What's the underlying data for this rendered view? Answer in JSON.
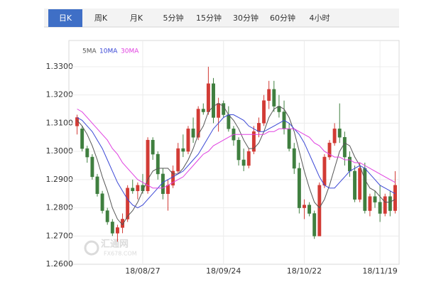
{
  "tabs": [
    "日K",
    "周K",
    "月K",
    "5分钟",
    "15分钟",
    "30分钟",
    "60分钟",
    "4小时"
  ],
  "active_tab": 0,
  "watermark": {
    "name": "汇通网",
    "site": "FX678.COM"
  },
  "chart_data": {
    "type": "candlestick",
    "up_color": "#d23b35",
    "down_color": "#3f7f3f",
    "categories": [
      null,
      null,
      null,
      null,
      null,
      null,
      null,
      null,
      null,
      null,
      null,
      null,
      null,
      "18/08/27",
      null,
      null,
      null,
      null,
      null,
      null,
      null,
      null,
      null,
      null,
      null,
      null,
      null,
      null,
      null,
      "18/09/24",
      null,
      null,
      null,
      null,
      null,
      null,
      null,
      null,
      null,
      null,
      null,
      null,
      null,
      null,
      null,
      "18/10/22",
      null,
      null,
      null,
      null,
      null,
      null,
      null,
      null,
      null,
      null,
      null,
      null,
      null,
      null,
      "18/11/19",
      null,
      null,
      null
    ],
    "ohlc": [
      [
        1.309,
        1.313,
        1.306,
        1.312
      ],
      [
        1.308,
        1.309,
        1.3,
        1.301
      ],
      [
        1.301,
        1.302,
        1.296,
        1.298
      ],
      [
        1.298,
        1.299,
        1.29,
        1.291
      ],
      [
        1.291,
        1.292,
        1.284,
        1.285
      ],
      [
        1.285,
        1.286,
        1.278,
        1.279
      ],
      [
        1.279,
        1.28,
        1.274,
        1.275
      ],
      [
        1.275,
        1.276,
        1.27,
        1.271
      ],
      [
        1.271,
        1.274,
        1.268,
        1.273
      ],
      [
        1.273,
        1.278,
        1.271,
        1.276
      ],
      [
        1.276,
        1.288,
        1.275,
        1.287
      ],
      [
        1.287,
        1.29,
        1.285,
        1.286
      ],
      [
        1.286,
        1.289,
        1.283,
        1.288
      ],
      [
        1.288,
        1.292,
        1.285,
        1.286
      ],
      [
        1.286,
        1.305,
        1.285,
        1.304
      ],
      [
        1.304,
        1.305,
        1.297,
        1.299
      ],
      [
        1.299,
        1.3,
        1.29,
        1.292
      ],
      [
        1.292,
        1.294,
        1.283,
        1.285
      ],
      [
        1.285,
        1.29,
        1.279,
        1.288
      ],
      [
        1.288,
        1.295,
        1.287,
        1.293
      ],
      [
        1.293,
        1.303,
        1.292,
        1.301
      ],
      [
        1.301,
        1.306,
        1.298,
        1.3
      ],
      [
        1.3,
        1.309,
        1.299,
        1.308
      ],
      [
        1.308,
        1.312,
        1.303,
        1.305
      ],
      [
        1.305,
        1.316,
        1.304,
        1.315
      ],
      [
        1.315,
        1.317,
        1.313,
        1.314
      ],
      [
        1.314,
        1.33,
        1.313,
        1.324
      ],
      [
        1.324,
        1.326,
        1.31,
        1.312
      ],
      [
        1.312,
        1.319,
        1.307,
        1.317
      ],
      [
        1.317,
        1.318,
        1.312,
        1.313
      ],
      [
        1.313,
        1.316,
        1.307,
        1.308
      ],
      [
        1.308,
        1.309,
        1.302,
        1.304
      ],
      [
        1.304,
        1.305,
        1.295,
        1.297
      ],
      [
        1.297,
        1.301,
        1.293,
        1.295
      ],
      [
        1.295,
        1.301,
        1.294,
        1.3
      ],
      [
        1.3,
        1.309,
        1.299,
        1.307
      ],
      [
        1.307,
        1.312,
        1.305,
        1.31
      ],
      [
        1.31,
        1.32,
        1.309,
        1.318
      ],
      [
        1.318,
        1.325,
        1.315,
        1.322
      ],
      [
        1.322,
        1.325,
        1.314,
        1.316
      ],
      [
        1.316,
        1.32,
        1.312,
        1.314
      ],
      [
        1.314,
        1.318,
        1.306,
        1.308
      ],
      [
        1.308,
        1.31,
        1.3,
        1.301
      ],
      [
        1.301,
        1.303,
        1.292,
        1.294
      ],
      [
        1.294,
        1.296,
        1.278,
        1.28
      ],
      [
        1.28,
        1.283,
        1.276,
        1.281
      ],
      [
        1.281,
        1.282,
        1.277,
        1.278
      ],
      [
        1.278,
        1.279,
        1.269,
        1.27
      ],
      [
        1.27,
        1.289,
        1.27,
        1.288
      ],
      [
        1.288,
        1.299,
        1.287,
        1.298
      ],
      [
        1.298,
        1.304,
        1.297,
        1.303
      ],
      [
        1.303,
        1.31,
        1.302,
        1.308
      ],
      [
        1.308,
        1.317,
        1.303,
        1.305
      ],
      [
        1.305,
        1.307,
        1.295,
        1.298
      ],
      [
        1.298,
        1.3,
        1.291,
        1.293
      ],
      [
        1.293,
        1.295,
        1.282,
        1.283
      ],
      [
        1.283,
        1.296,
        1.282,
        1.294
      ],
      [
        1.294,
        1.296,
        1.278,
        1.279
      ],
      [
        1.279,
        1.285,
        1.277,
        1.284
      ],
      [
        1.284,
        1.286,
        1.28,
        1.282
      ],
      [
        1.282,
        1.288,
        1.275,
        1.278
      ],
      [
        1.278,
        1.285,
        1.277,
        1.284
      ],
      [
        1.284,
        1.286,
        1.277,
        1.279
      ],
      [
        1.279,
        1.293,
        1.278,
        1.288
      ]
    ],
    "series": [
      {
        "name": "5MA",
        "color": "#555555",
        "values": [
          1.311,
          1.309,
          1.306,
          1.302,
          1.297,
          1.291,
          1.286,
          1.28,
          1.276,
          1.274,
          1.277,
          1.279,
          1.282,
          1.286,
          1.29,
          1.293,
          1.294,
          1.294,
          1.294,
          1.292,
          1.292,
          1.294,
          1.297,
          1.301,
          1.306,
          1.309,
          1.314,
          1.316,
          1.317,
          1.316,
          1.313,
          1.311,
          1.308,
          1.304,
          1.301,
          1.301,
          1.303,
          1.307,
          1.312,
          1.315,
          1.316,
          1.315,
          1.312,
          1.307,
          1.3,
          1.293,
          1.287,
          1.282,
          1.28,
          1.283,
          1.288,
          1.294,
          1.3,
          1.303,
          1.302,
          1.298,
          1.295,
          1.29,
          1.287,
          1.286,
          1.284,
          1.282,
          1.282,
          1.283
        ]
      },
      {
        "name": "10MA",
        "color": "#3b48d6",
        "values": [
          1.312,
          1.311,
          1.309,
          1.307,
          1.304,
          1.301,
          1.297,
          1.293,
          1.289,
          1.286,
          1.283,
          1.281,
          1.28,
          1.281,
          1.283,
          1.285,
          1.287,
          1.289,
          1.29,
          1.291,
          1.292,
          1.293,
          1.295,
          1.297,
          1.299,
          1.302,
          1.305,
          1.308,
          1.31,
          1.312,
          1.313,
          1.313,
          1.312,
          1.311,
          1.309,
          1.308,
          1.307,
          1.307,
          1.308,
          1.309,
          1.31,
          1.311,
          1.31,
          1.308,
          1.306,
          1.303,
          1.299,
          1.295,
          1.291,
          1.288,
          1.287,
          1.287,
          1.289,
          1.291,
          1.293,
          1.294,
          1.295,
          1.294,
          1.292,
          1.29,
          1.288,
          1.287,
          1.286,
          1.285
        ]
      },
      {
        "name": "30MA",
        "color": "#e040e0",
        "values": [
          1.315,
          1.314,
          1.312,
          1.31,
          1.308,
          1.306,
          1.304,
          1.301,
          1.299,
          1.296,
          1.294,
          1.292,
          1.29,
          1.289,
          1.288,
          1.287,
          1.287,
          1.287,
          1.288,
          1.289,
          1.29,
          1.291,
          1.293,
          1.295,
          1.297,
          1.299,
          1.3,
          1.302,
          1.303,
          1.304,
          1.305,
          1.306,
          1.306,
          1.306,
          1.306,
          1.306,
          1.306,
          1.306,
          1.307,
          1.307,
          1.308,
          1.308,
          1.308,
          1.308,
          1.307,
          1.306,
          1.305,
          1.303,
          1.302,
          1.3,
          1.299,
          1.298,
          1.298,
          1.297,
          1.297,
          1.296,
          1.296,
          1.295,
          1.294,
          1.293,
          1.292,
          1.291,
          1.29,
          1.289
        ]
      }
    ],
    "ylim": [
      1.26,
      1.3393
    ],
    "yticks": [
      {
        "value": 1.26,
        "label": "1.2600"
      },
      {
        "value": 1.27,
        "label": "1.2700"
      },
      {
        "value": 1.28,
        "label": "1.2800"
      },
      {
        "value": 1.29,
        "label": "1.2900"
      },
      {
        "value": 1.3,
        "label": "1.3000"
      },
      {
        "value": 1.31,
        "label": "1.3100"
      },
      {
        "value": 1.32,
        "label": "1.3200"
      },
      {
        "value": 1.33,
        "label": "1.3300"
      }
    ],
    "grid": true
  }
}
